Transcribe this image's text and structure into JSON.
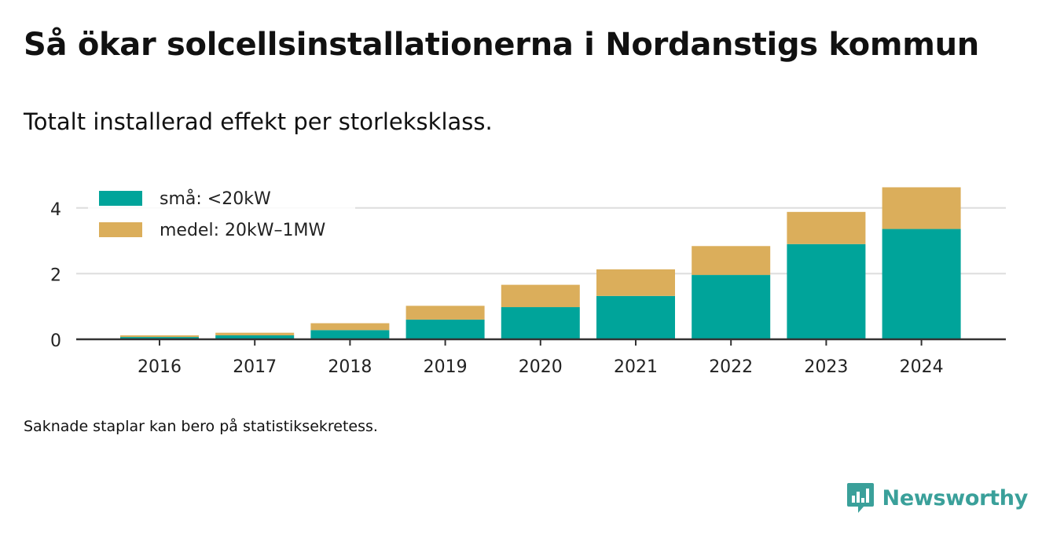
{
  "header": {
    "title": "Så ökar solcellsinstallationerna i Nordanstigs kommun",
    "subtitle": "Totalt installerad effekt per storleksklass."
  },
  "footer": {
    "note": "Saknade staplar kan bero på statistiksekretess.",
    "brand": "Newsworthy"
  },
  "colors": {
    "small": "#00a49a",
    "medium": "#dbae5b",
    "grid": "#dddddd",
    "axis": "#333333",
    "brand": "#3aa09a"
  },
  "icons": {
    "brand_logo": "bar-chart-speech-bubble-icon"
  },
  "chart_data": {
    "type": "bar",
    "stacked": true,
    "categories": [
      "2016",
      "2017",
      "2018",
      "2019",
      "2020",
      "2021",
      "2022",
      "2023",
      "2024"
    ],
    "series": [
      {
        "name": "små: <20kW",
        "values": [
          0.07,
          0.12,
          0.28,
          0.6,
          0.98,
          1.32,
          1.96,
          2.9,
          3.36
        ]
      },
      {
        "name": "medel: 20kW–1MW",
        "values": [
          0.05,
          0.08,
          0.21,
          0.42,
          0.68,
          0.81,
          0.88,
          0.98,
          1.27
        ]
      }
    ],
    "yticks": [
      0,
      2,
      4
    ],
    "ylim": [
      0,
      4.8
    ],
    "grid": true,
    "legend_position": "top-left",
    "xlabel": "",
    "ylabel": ""
  }
}
